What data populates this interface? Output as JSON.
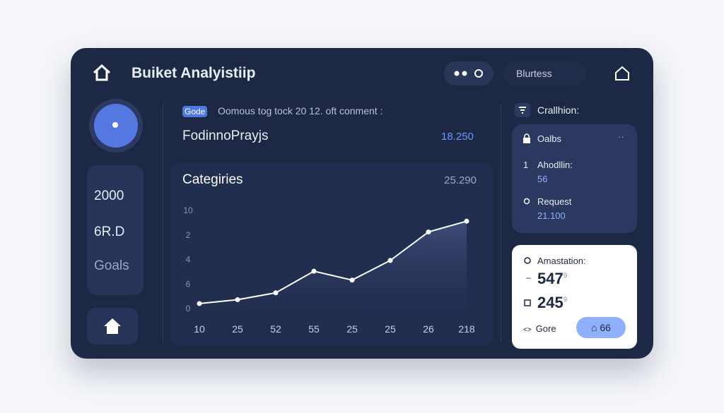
{
  "header": {
    "title": "Buiket Analyistiip",
    "toggle": "Blurtess"
  },
  "profile": {
    "stats": [
      "2000",
      "6R.D",
      "Goals"
    ]
  },
  "feed": {
    "tag": "Gode",
    "text": "Oomous  tog  tock  20  12.  oft  conment  :",
    "name": "FodinnoPrayjs",
    "value": "18.250"
  },
  "chart_data": {
    "type": "line",
    "title": "Categiries",
    "value_label": "25.290",
    "categories": [
      "10",
      "25",
      "52",
      "55",
      "25",
      "25",
      "26",
      "218"
    ],
    "values": [
      0.5,
      0.9,
      1.6,
      3.8,
      2.9,
      4.9,
      7.8,
      8.9
    ],
    "color": "#ffffff",
    "ylim": [
      0,
      10
    ],
    "yticks": [
      10,
      {
        "value": 7.5,
        "label": "2"
      },
      {
        "value": 5,
        "label": "4"
      },
      {
        "value": 2.5,
        "label": "6"
      },
      0
    ]
  },
  "sidebar": {
    "title": "Crallhion:",
    "panel": {
      "title": "Oalbs",
      "items": [
        {
          "index": "1",
          "label": "Ahodllin:",
          "value": "56"
        },
        {
          "label": "Request",
          "value": "21.100"
        }
      ]
    },
    "card": {
      "title": "Amastation:",
      "stats": [
        {
          "value": "547",
          "sup": "9"
        },
        {
          "value": "245",
          "sup": "9"
        }
      ],
      "link": "Gore",
      "button": "66"
    }
  }
}
